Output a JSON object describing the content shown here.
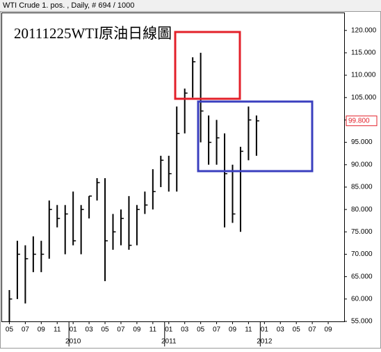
{
  "header": "WTI Crude 1. pos. , Daily, # 694 / 1000",
  "chart_data": {
    "type": "ohlc",
    "annotation": "20111225WTI原油日線圖",
    "x": [
      "2009-05",
      "2009-06",
      "2009-07",
      "2009-08",
      "2009-09",
      "2009-10",
      "2009-11",
      "2009-12",
      "2010-01",
      "2010-02",
      "2010-03",
      "2010-04",
      "2010-05",
      "2010-06",
      "2010-07",
      "2010-08",
      "2010-09",
      "2010-10",
      "2010-11",
      "2010-12",
      "2011-01",
      "2011-02",
      "2011-03",
      "2011-04",
      "2011-05",
      "2011-06",
      "2011-07",
      "2011-08",
      "2011-09",
      "2011-10",
      "2011-11",
      "2011-12"
    ],
    "high": [
      62,
      73,
      72,
      74,
      73,
      82,
      81,
      81,
      84,
      81,
      83,
      87,
      87,
      79,
      80,
      83,
      81,
      84,
      89,
      92,
      92,
      103,
      107,
      114,
      115,
      101,
      100,
      97,
      90,
      94,
      103,
      101
    ],
    "low": [
      55,
      60,
      59,
      66,
      66,
      69,
      76,
      70,
      72,
      70,
      78,
      82,
      64,
      71,
      72,
      71,
      72,
      79,
      80,
      85,
      84,
      84,
      97,
      105,
      95,
      90,
      90,
      76,
      77,
      75,
      91,
      92
    ],
    "close": [
      60,
      70,
      69,
      70,
      70,
      80,
      78,
      79,
      73,
      80,
      83,
      86,
      73,
      75,
      78,
      72,
      80,
      81,
      84,
      91,
      88,
      97,
      106,
      113,
      102,
      95,
      96,
      88,
      79,
      93,
      100,
      99.8
    ],
    "color": "#000000",
    "last_value": {
      "value": 99.8,
      "label": "99.800"
    },
    "xlim": [
      "2009-04",
      "2012-11"
    ],
    "xticks": [
      {
        "value": "2009-05",
        "label": "05"
      },
      {
        "value": "2009-07",
        "label": "07"
      },
      {
        "value": "2009-09",
        "label": "09"
      },
      {
        "value": "2009-11",
        "label": "11"
      },
      {
        "value": "2010-01",
        "label": "01"
      },
      {
        "value": "2010-03",
        "label": "03"
      },
      {
        "value": "2010-05",
        "label": "05"
      },
      {
        "value": "2010-07",
        "label": "07"
      },
      {
        "value": "2010-09",
        "label": "09"
      },
      {
        "value": "2010-11",
        "label": "11"
      },
      {
        "value": "2011-01",
        "label": "01"
      },
      {
        "value": "2011-03",
        "label": "03"
      },
      {
        "value": "2011-05",
        "label": "05"
      },
      {
        "value": "2011-07",
        "label": "07"
      },
      {
        "value": "2011-09",
        "label": "09"
      },
      {
        "value": "2011-11",
        "label": "11"
      },
      {
        "value": "2012-01",
        "label": "01"
      },
      {
        "value": "2012-03",
        "label": "03"
      },
      {
        "value": "2012-05",
        "label": "05"
      },
      {
        "value": "2012-07",
        "label": "07"
      },
      {
        "value": "2012-09",
        "label": "09"
      }
    ],
    "year_labels": [
      {
        "value": "2010-01",
        "label": "2010"
      },
      {
        "value": "2011-01",
        "label": "2011"
      },
      {
        "value": "2012-01",
        "label": "2012"
      }
    ],
    "ylim": [
      55,
      124
    ],
    "yticks": [
      {
        "value": 55,
        "label": "55.000"
      },
      {
        "value": 60,
        "label": "60.000"
      },
      {
        "value": 65,
        "label": "65.000"
      },
      {
        "value": 70,
        "label": "70.000"
      },
      {
        "value": 75,
        "label": "75.000"
      },
      {
        "value": 80,
        "label": "80.000"
      },
      {
        "value": 85,
        "label": "85.000"
      },
      {
        "value": 90,
        "label": "90.000"
      },
      {
        "value": 95,
        "label": "95.000"
      },
      {
        "value": 100,
        "label": "100.000"
      },
      {
        "value": 105,
        "label": "105.000"
      },
      {
        "value": 110,
        "label": "110.000"
      },
      {
        "value": 115,
        "label": "115.000"
      },
      {
        "value": 120,
        "label": "120.000"
      }
    ]
  }
}
